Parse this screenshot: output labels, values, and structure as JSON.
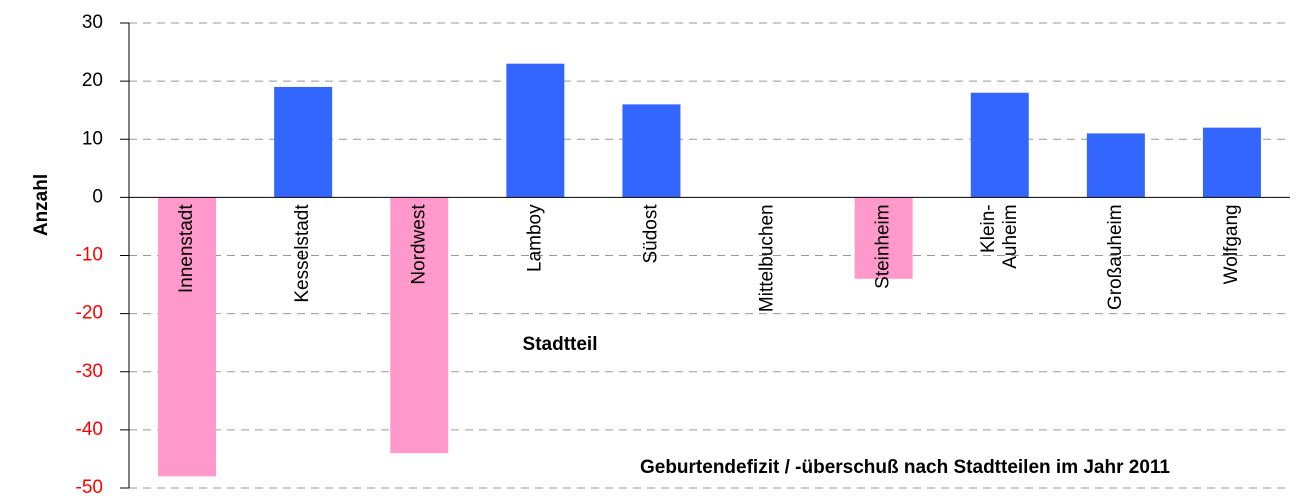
{
  "chart_data": {
    "type": "bar",
    "title": "Geburtendefizit / -überschuß nach Stadtteilen im Jahr 2011",
    "x_label": "Stadtteil",
    "y_label": "Anzahl",
    "categories": [
      "Innenstadt",
      "Kesselstadt",
      "Nordwest",
      "Lamboy",
      "Südost",
      "Mittelbuchen",
      "Steinheim",
      "Klein-\nAuheim",
      "Großauheim",
      "Wolfgang"
    ],
    "values": [
      -48,
      19,
      -44,
      23,
      16,
      0,
      -14,
      18,
      11,
      12
    ],
    "positive_color": "#3366ff",
    "negative_color": "#ff99cc",
    "negative_tick_color": "#ff0000",
    "ylim": [
      -50,
      30
    ],
    "yticks": [
      -50,
      -40,
      -30,
      -20,
      -10,
      0,
      10,
      20,
      30
    ],
    "grid": true
  }
}
